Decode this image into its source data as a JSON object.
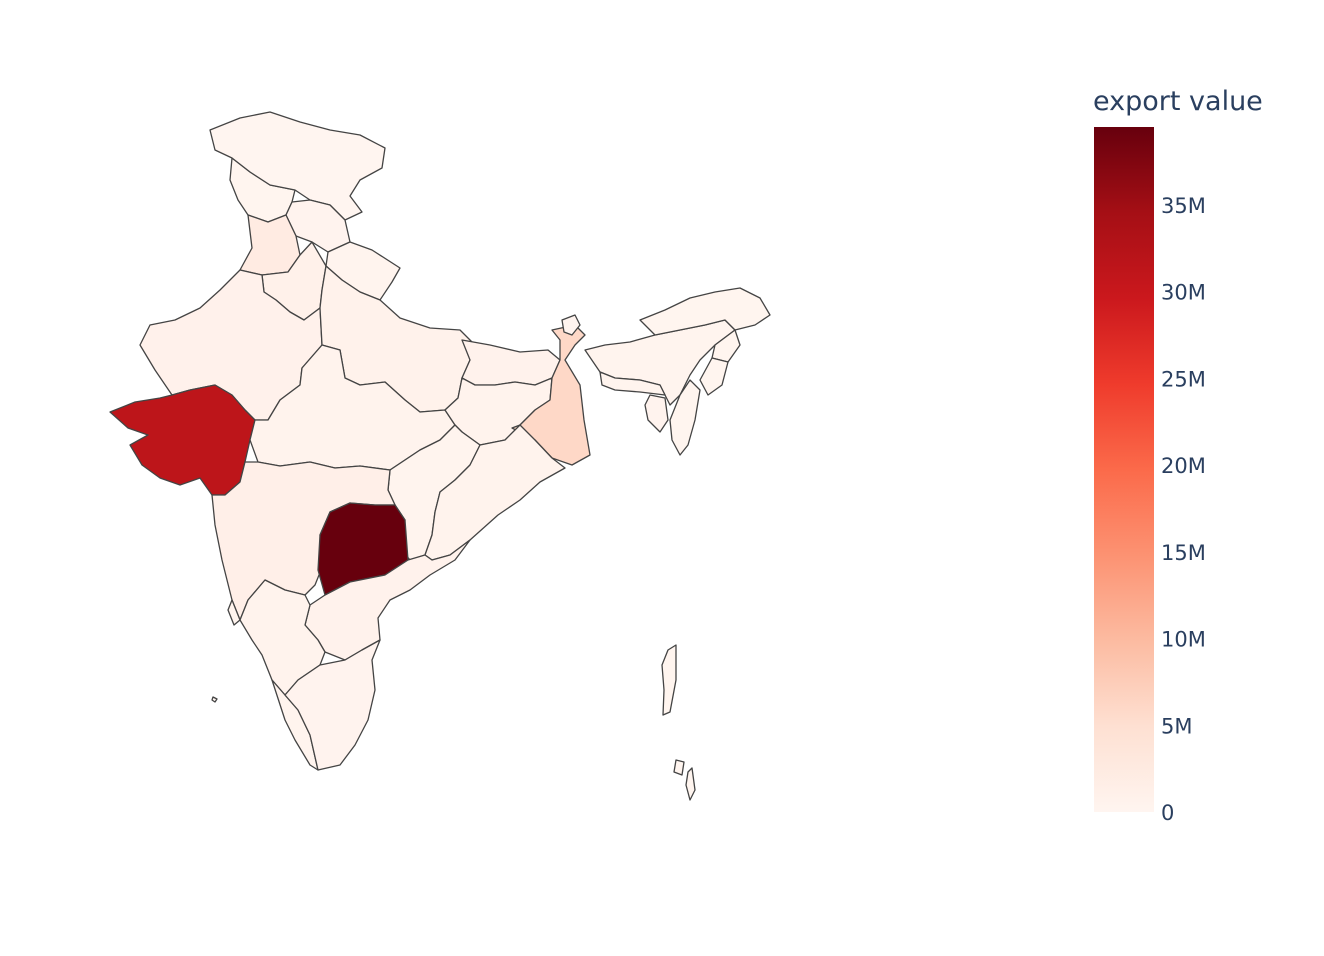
{
  "colorbar": {
    "title": "export value",
    "tick_labels": [
      "35M",
      "30M",
      "25M",
      "20M",
      "15M",
      "10M",
      "5M",
      "0"
    ],
    "tick_values": [
      35000000,
      30000000,
      25000000,
      20000000,
      15000000,
      10000000,
      5000000,
      0
    ],
    "range": [
      0,
      39500000
    ],
    "colorscale": [
      "#fff5f0",
      "#fee0d2",
      "#fcbba1",
      "#fc9272",
      "#fb6a4a",
      "#ef3b2c",
      "#cb181d",
      "#a50f15",
      "#67000d"
    ]
  },
  "map_data": {
    "type": "choropleth",
    "regions": [
      {
        "name": "Jammu and Kashmir",
        "value": 100000
      },
      {
        "name": "Ladakh",
        "value": 0
      },
      {
        "name": "Himachal Pradesh",
        "value": 400000
      },
      {
        "name": "Punjab",
        "value": 2300000
      },
      {
        "name": "Uttarakhand",
        "value": 300000
      },
      {
        "name": "Haryana",
        "value": 1000000
      },
      {
        "name": "Rajasthan",
        "value": 900000
      },
      {
        "name": "Uttar Pradesh",
        "value": 800000
      },
      {
        "name": "Gujarat",
        "value": 31500000
      },
      {
        "name": "Madhya Pradesh",
        "value": 500000
      },
      {
        "name": "Bihar",
        "value": 600000
      },
      {
        "name": "Jharkhand",
        "value": 500000
      },
      {
        "name": "West Bengal",
        "value": 6000000
      },
      {
        "name": "Chhattisgarh",
        "value": 300000
      },
      {
        "name": "Odisha",
        "value": 500000
      },
      {
        "name": "Maharashtra",
        "value": 1300000
      },
      {
        "name": "Telangana",
        "value": 39500000
      },
      {
        "name": "Andhra Pradesh",
        "value": 600000
      },
      {
        "name": "Karnataka",
        "value": 500000
      },
      {
        "name": "Goa",
        "value": 300000
      },
      {
        "name": "Kerala",
        "value": 300000
      },
      {
        "name": "Tamil Nadu",
        "value": 400000
      },
      {
        "name": "Sikkim",
        "value": 200000
      },
      {
        "name": "Assam",
        "value": 300000
      },
      {
        "name": "Arunachal Pradesh",
        "value": 100000
      },
      {
        "name": "Meghalaya",
        "value": 300000
      },
      {
        "name": "Nagaland",
        "value": 100000
      },
      {
        "name": "Manipur",
        "value": 100000
      },
      {
        "name": "Mizoram",
        "value": 100000
      },
      {
        "name": "Tripura",
        "value": 400000
      },
      {
        "name": "Andaman and Nicobar Islands",
        "value": 100000
      },
      {
        "name": "Lakshadweep",
        "value": 0
      }
    ]
  }
}
